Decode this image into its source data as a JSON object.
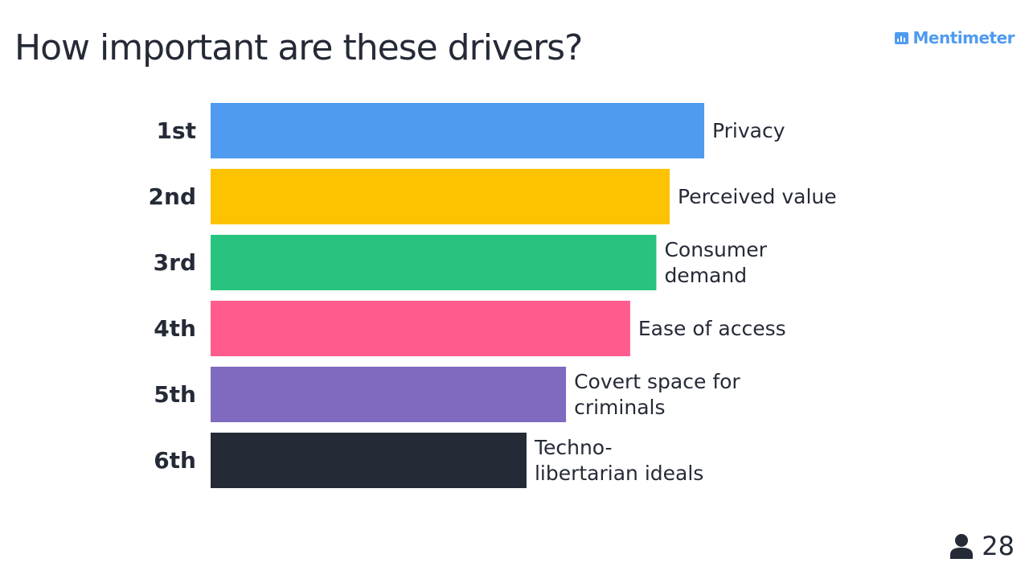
{
  "brand": {
    "name": "Mentimeter",
    "logo_icon": "bar-chart-icon"
  },
  "participants": {
    "icon": "person-icon",
    "count": "28"
  },
  "chart_data": {
    "type": "bar",
    "orientation": "horizontal",
    "title": "How important are these drivers?",
    "ranks": [
      "1st",
      "2nd",
      "3rd",
      "4th",
      "5th",
      "6th"
    ],
    "categories": [
      [
        "Privacy"
      ],
      [
        "Perceived value"
      ],
      [
        "Consumer",
        "demand"
      ],
      [
        "Ease of access"
      ],
      [
        "Covert space for",
        "criminals"
      ],
      [
        "Techno-",
        "libertarian ideals"
      ]
    ],
    "values": [
      100,
      93,
      90.3,
      85,
      72,
      64
    ],
    "xlim": [
      0,
      100
    ],
    "colors": [
      "#4f9bf0",
      "#fdc200",
      "#28c47f",
      "#ff5c8d",
      "#7f6ac0",
      "#252a37"
    ],
    "grid": false,
    "legend": "none"
  }
}
